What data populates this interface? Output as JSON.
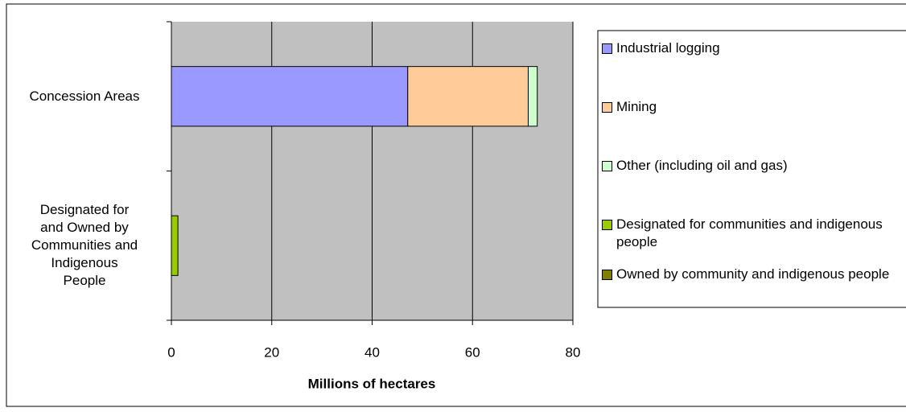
{
  "chart_data": {
    "type": "stacked-bar-horizontal",
    "xlabel": "Millions of hectares",
    "categories": [
      "Concession Areas",
      "Designated for and Owned by Communities and Indigenous People"
    ],
    "series": [
      {
        "name": "Industrial logging",
        "color": "#9999ff",
        "values": [
          47.1,
          0
        ]
      },
      {
        "name": "Mining",
        "color": "#ffcc99",
        "values": [
          24.0,
          0
        ]
      },
      {
        "name": "Other (including oil and gas)",
        "color": "#ccffcc",
        "values": [
          1.8,
          0
        ]
      },
      {
        "name": "Designated for communities and indigenous people",
        "color": "#99cc00",
        "values": [
          0,
          1.3
        ]
      },
      {
        "name": "Owned by community and indigenous people",
        "color": "#808000",
        "values": [
          0,
          0
        ]
      }
    ],
    "xlim": [
      0,
      80
    ],
    "xticks": [
      0,
      20,
      40,
      60,
      80
    ],
    "grid": true,
    "legend": "right",
    "plot_background": "#c0c0c0"
  }
}
